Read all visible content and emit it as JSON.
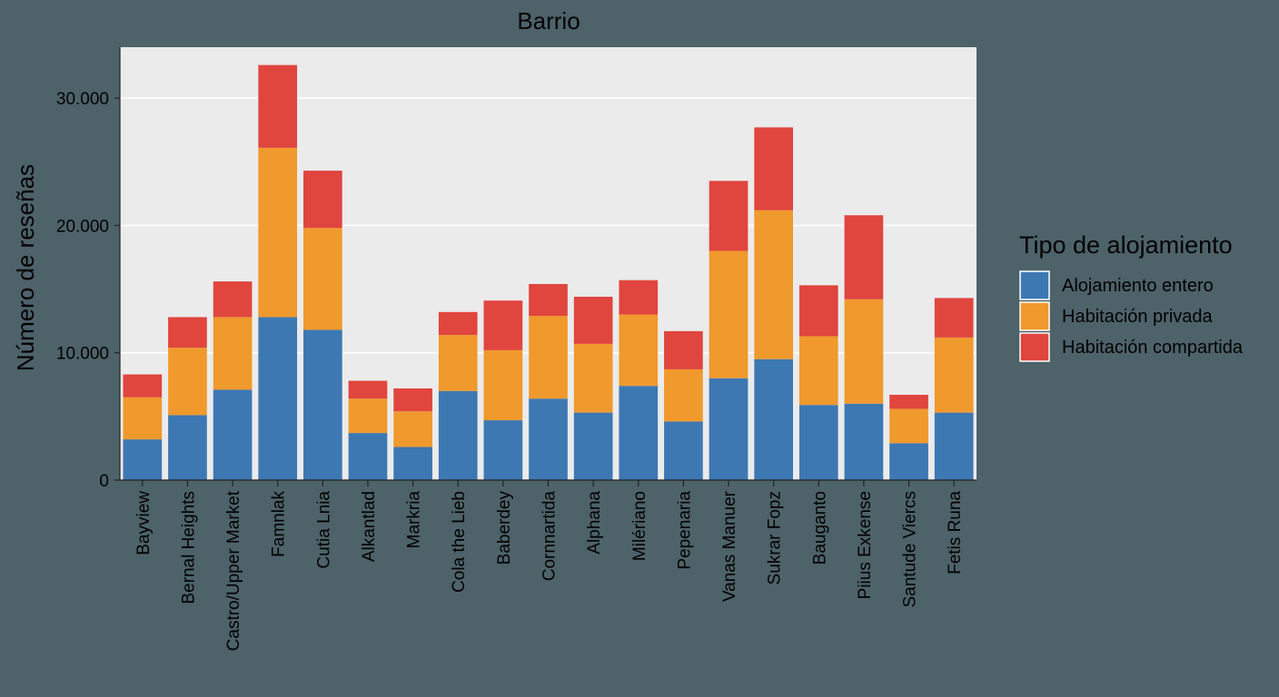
{
  "chart_data": {
    "type": "bar",
    "stacked": true,
    "title": "Barrio",
    "xlabel": "",
    "ylabel": "Número de reseñas",
    "ylim": [
      0,
      34000
    ],
    "yticks": [
      0,
      10000,
      20000,
      30000
    ],
    "ytick_labels": [
      "0",
      "10.000",
      "20.000",
      "30.000"
    ],
    "grid": true,
    "legend": {
      "title": "Tipo de alojamiento",
      "position": "right"
    },
    "categories": [
      "Bayview",
      "Bernal Heights",
      "Castro/Upper Market",
      "Famnlak",
      "Cutia Lnia",
      "Alkantlad",
      "Markria",
      "Cola the Lieb",
      "Baberdey",
      "Cornnartida",
      "Alphana",
      "Milériano",
      "Pepenaria",
      "Vanas Manuer",
      "Sukrar Fopz",
      "Bauganto",
      "Piius Exkense",
      "Santude Viercs",
      "Fetis Runa"
    ],
    "series": [
      {
        "name": "Alojamiento entero",
        "color": "#3d78b3",
        "values": [
          3200,
          5100,
          7100,
          12800,
          11800,
          3700,
          2600,
          7000,
          4700,
          6400,
          5300,
          7400,
          4600,
          8000,
          9500,
          5900,
          6000,
          2900,
          5300
        ]
      },
      {
        "name": "Habitación privada",
        "color": "#f0992c",
        "values": [
          3300,
          5300,
          5700,
          13300,
          8000,
          2700,
          2800,
          4400,
          5500,
          6500,
          5400,
          5600,
          4100,
          10000,
          11700,
          5400,
          8200,
          2700,
          5900
        ]
      },
      {
        "name": "Habitación compartida",
        "color": "#e0453e",
        "values": [
          1800,
          2400,
          2800,
          6500,
          4500,
          1400,
          1800,
          1800,
          3900,
          2500,
          3700,
          2700,
          3000,
          5500,
          6500,
          4000,
          6600,
          1100,
          3100
        ]
      }
    ]
  }
}
